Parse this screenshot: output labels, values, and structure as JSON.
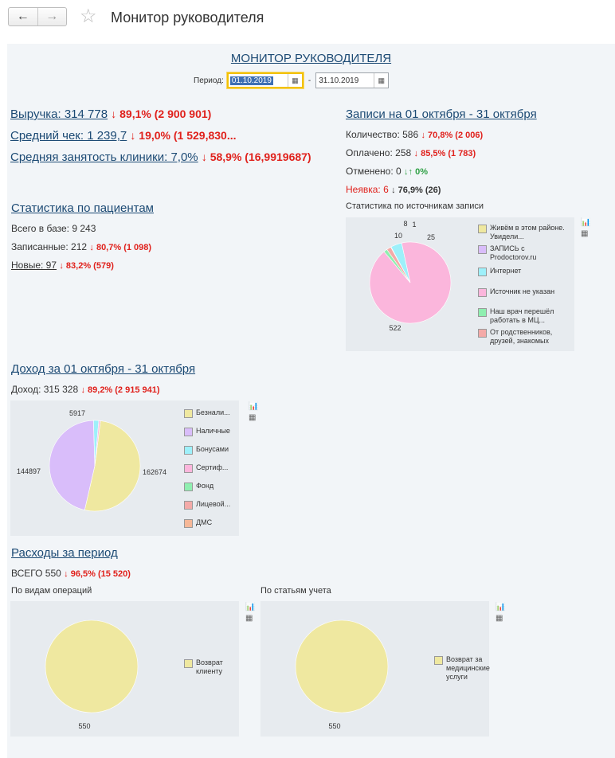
{
  "nav": {
    "back": "←",
    "forward": "→",
    "star": "☆",
    "title": "Монитор руководителя"
  },
  "monitor": {
    "title": "МОНИТОР РУКОВОДИТЕЛЯ",
    "period_label": "Период:",
    "date_from": "01.10.2019",
    "dash": "-",
    "date_to": "31.10.2019"
  },
  "kpi": {
    "revenue_label": "Выручка: 314 778",
    "revenue_delta": "↓ 89,1% (2 900 901)",
    "avg_check_label": "Средний чек: 1 239,7",
    "avg_check_delta": "↓ 19,0% (1 529,830...",
    "occupancy_label": "Средняя занятость клиники: 7,0%",
    "occupancy_delta": "↓ 58,9% (16,9919687)"
  },
  "appointments": {
    "title": "Записи на 01 октября - 31 октября",
    "count_label": "Количество: 586",
    "count_delta": "↓ 70,8% (2 006)",
    "paid_label": "Оплачено: 258",
    "paid_delta": "↓ 85,5% (1 783)",
    "cancelled_label": "Отменено: 0",
    "cancelled_delta": "↓↑ 0%",
    "noshow_label": "Неявка: 6",
    "noshow_delta": "↓ 76,9% (26)",
    "sources_title": "Статистика по источникам записи"
  },
  "patients": {
    "title": "Статистика по пациентам",
    "total": "Всего в базе: 9 243",
    "booked_label": "Записанные: 212",
    "booked_delta": "↓ 80,7% (1 098)",
    "new_label": "Новые: 97",
    "new_delta": "↓ 83,2% (579)"
  },
  "income": {
    "title": "Доход за 01 октября - 31 октября",
    "value_label": "Доход: 315 328",
    "value_delta": "↓ 89,2% (2 915 941)"
  },
  "expenses": {
    "title": "Расходы за период",
    "total_label": "ВСЕГО 550",
    "total_delta": "↓ 96,5% (15 520)",
    "by_ops_title": "По видам операций",
    "by_items_title": "По статьям учета"
  },
  "icons": {
    "chart": "chart-icon",
    "table": "table-icon",
    "calendar": "calendar-icon"
  },
  "colors": {
    "yellow": "#efe8a0",
    "lilac": "#d9bdfa",
    "cyan": "#9ef0fa",
    "pink": "#fbb6dc",
    "green": "#8fefb0",
    "salmon": "#f4aaa8",
    "orange": "#f6b898"
  },
  "chart_data": [
    {
      "type": "pie",
      "title": "Статистика по источникам записи",
      "categories": [
        "Живём в этом районе. Увидели...",
        "ЗАПИСЬ с Prodoctorov.ru",
        "Интернет",
        "Источник не указан",
        "Наш врач перешёл работать в МЦ...",
        "От родственников, друзей, знакомых"
      ],
      "values": [
        1,
        0,
        25,
        522,
        8,
        10
      ],
      "colors": [
        "#efe8a0",
        "#d9bdfa",
        "#9ef0fa",
        "#fbb6dc",
        "#8fefb0",
        "#f4aaa8"
      ],
      "value_labels": [
        "1",
        "",
        "25",
        "522",
        "8",
        "10"
      ],
      "legend": "right"
    },
    {
      "type": "pie",
      "title": "",
      "categories": [
        "Безнали...",
        "Наличные",
        "Бонусами",
        "Сертиф...",
        "Фонд",
        "Лицевой...",
        "ДМС"
      ],
      "values": [
        162674,
        144897,
        5917,
        1840,
        0,
        0,
        0
      ],
      "colors": [
        "#efe8a0",
        "#d9bdfa",
        "#9ef0fa",
        "#fbb6dc",
        "#8fefb0",
        "#f4aaa8",
        "#f6b898"
      ],
      "value_labels": [
        "162674",
        "144897",
        "5917",
        "",
        "",
        "",
        ""
      ],
      "legend": "right"
    },
    {
      "type": "pie",
      "title": "По видам операций",
      "categories": [
        "Возврат клиенту"
      ],
      "values": [
        550
      ],
      "colors": [
        "#efe8a0"
      ],
      "value_labels": [
        "550"
      ],
      "legend": "right"
    },
    {
      "type": "pie",
      "title": "По статьям учета",
      "categories": [
        "Возврат за медицинские услуги"
      ],
      "values": [
        550
      ],
      "colors": [
        "#efe8a0"
      ],
      "value_labels": [
        "550"
      ],
      "legend": "right"
    }
  ]
}
